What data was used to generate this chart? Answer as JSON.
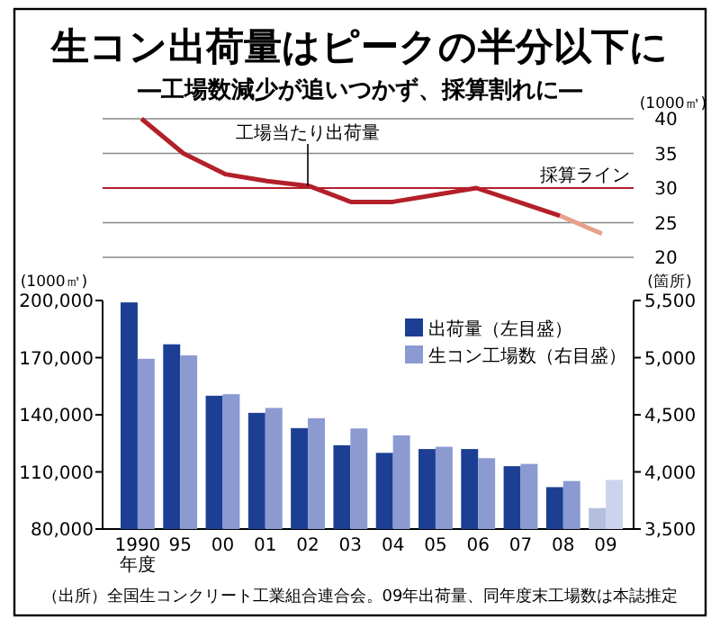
{
  "chart_data": [
    {
      "type": "line",
      "title": "生コン出荷量はピークの半分以下に",
      "subtitle": "―工場数減少が追いつかず、採算割れに―",
      "ylabel": "(1000㎥)",
      "categories": [
        null,
        null,
        null,
        null,
        null,
        null,
        null,
        null,
        null,
        null,
        null,
        null
      ],
      "series": [
        {
          "color": "#b3202a",
          "values": [
            40,
            35,
            32,
            31,
            30.3,
            28,
            28,
            29,
            30,
            28,
            26,
            null
          ]
        },
        {
          "color": "#e6a08c",
          "values": [
            null,
            null,
            null,
            null,
            null,
            null,
            null,
            null,
            null,
            null,
            26,
            23.4
          ]
        }
      ],
      "ylim": [
        20,
        40
      ],
      "yticks": [
        20,
        25,
        30,
        35,
        40
      ],
      "grid": "y",
      "tick_labels": "y",
      "marker": "none",
      "line_style": "solid",
      "ref_lines": [
        {
          "axis": "y",
          "value": 30,
          "label": "採算ライン",
          "color": "#b3202a"
        }
      ],
      "annotations": [
        "工場当たり出荷量"
      ]
    },
    {
      "type": "bar",
      "xlabel": "年度",
      "ylabel": "(1000㎥)",
      "y2label": "(箇所)",
      "categories": [
        "1990",
        "95",
        "00",
        "01",
        "02",
        "03",
        "04",
        "05",
        "06",
        "07",
        "08",
        "09"
      ],
      "series": [
        {
          "name": "出荷量（左目盛）",
          "color": "#1c3f94",
          "colors": [
            "#1c3f94",
            "#1c3f94",
            "#1c3f94",
            "#1c3f94",
            "#1c3f94",
            "#1c3f94",
            "#1c3f94",
            "#1c3f94",
            "#1c3f94",
            "#1c3f94",
            "#1c3f94",
            "#b4bfe0"
          ],
          "values": [
            199000,
            177000,
            150000,
            141000,
            133000,
            124000,
            120000,
            122000,
            122000,
            113000,
            102000,
            91000
          ]
        },
        {
          "name": "生コン工場数（右目盛）",
          "color": "#8c9ad2",
          "colors": [
            "#8c9ad2",
            "#8c9ad2",
            "#8c9ad2",
            "#8c9ad2",
            "#8c9ad2",
            "#8c9ad2",
            "#8c9ad2",
            "#8c9ad2",
            "#8c9ad2",
            "#8c9ad2",
            "#8c9ad2",
            "#ccd3ee"
          ],
          "axis": "y2",
          "values": [
            4990,
            5020,
            4680,
            4560,
            4470,
            4380,
            4320,
            4220,
            4120,
            4070,
            3920,
            3930
          ]
        }
      ],
      "ylim": [
        80000,
        200000
      ],
      "yticks": [
        {
          "value": 80000,
          "label": "80,000"
        },
        {
          "value": 110000,
          "label": "110,000"
        },
        {
          "value": 140000,
          "label": "140,000"
        },
        {
          "value": 170000,
          "label": "170,000"
        },
        {
          "value": 200000,
          "label": "200,000"
        }
      ],
      "y2lim": [
        3500,
        5500
      ],
      "y2ticks": [
        {
          "value": 3500,
          "label": "3,500"
        },
        {
          "value": 4000,
          "label": "4,000"
        },
        {
          "value": 4500,
          "label": "4,500"
        },
        {
          "value": 5000,
          "label": "5,000"
        },
        {
          "value": 5500,
          "label": "5,500"
        }
      ],
      "legend": "top right",
      "grid": false,
      "annotations": [
        "（出所）全国生コンクリート工業組合連合会。09年出荷量、同年度末工場数は本誌推定"
      ]
    }
  ]
}
